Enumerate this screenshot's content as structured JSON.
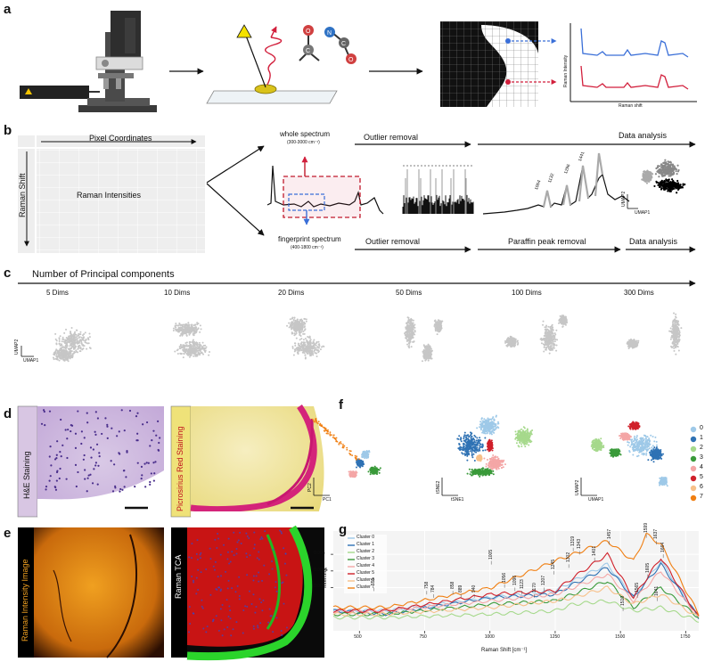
{
  "panels": {
    "a": {
      "letter": "a",
      "ylabel": "Raman Intensity",
      "xlabel": "Raman shift",
      "molecule_atoms": [
        "C",
        "N",
        "C",
        "O",
        "O"
      ]
    },
    "b": {
      "letter": "b",
      "grid_top": "Pixel Coordinates",
      "grid_side": "Raman Shift",
      "grid_center": "Raman Intensities",
      "whole_title": "whole spectrum",
      "whole_range": "(300-3000 cm⁻¹)",
      "finger_title": "fingerprint spectrum",
      "finger_range": "(400-1800 cm⁻¹)",
      "outlier_top": "Outlier removal",
      "analysis_top": "Data analysis",
      "outlier_bottom": "Outlier removal",
      "paraffin": "Paraffin peak removal",
      "analysis_bottom": "Data analysis",
      "peaks": [
        "1064",
        "1132",
        "1296",
        "1441"
      ],
      "umap_x": "UMAP1",
      "umap_y": "UMAP2"
    },
    "c": {
      "letter": "c",
      "title": "Number of Principal components",
      "dims": [
        "5 Dims",
        "10 Dims",
        "20 Dims",
        "50 Dims",
        "100 Dims",
        "300 Dims"
      ],
      "umap_x": "UMAP1",
      "umap_y": "UMAP2"
    },
    "d": {
      "letter": "d",
      "he": "H&E Staining",
      "pr": "Picrosirius Red Staining"
    },
    "e": {
      "letter": "e",
      "rii": "Raman Intensity Image",
      "tca": "Raman TCA"
    },
    "f": {
      "letter": "f",
      "pc_x": "PC1",
      "pc_y": "PC2",
      "tsne_x": "tSNE1",
      "tsne_y": "tSNE2",
      "umap_x": "UMAP1",
      "umap_y": "UMAP2",
      "legend": [
        "0",
        "1",
        "2",
        "3",
        "4",
        "5",
        "6",
        "7"
      ]
    },
    "g": {
      "letter": "g"
    }
  },
  "colors": {
    "c0": "#9ec9e8",
    "c1": "#2f72b4",
    "c2": "#a6d98c",
    "c3": "#3a9a3a",
    "c4": "#f4a6a6",
    "c5": "#d0202a",
    "c6": "#f7c089",
    "c7": "#f07f12"
  },
  "chart_data": {
    "type": "line",
    "xlabel": "Raman Shift [cm⁻¹]",
    "ylabel": "Intensity",
    "xlim": [
      400,
      1800
    ],
    "ylim": [
      0.0037,
      0.0067
    ],
    "xticks": [
      "500",
      "750",
      "1000",
      "1250",
      "1500",
      "1750"
    ],
    "yticks": [
      "0.005",
      "0.0055",
      "0.006"
    ],
    "series": [
      {
        "name": "Cluster 0",
        "color": "#9ec9e8",
        "points": [
          [
            400,
            0.0043
          ],
          [
            600,
            0.0043
          ],
          [
            1005,
            0.0047
          ],
          [
            1250,
            0.0049
          ],
          [
            1319,
            0.0052
          ],
          [
            1450,
            0.0057
          ],
          [
            1550,
            0.0047
          ],
          [
            1655,
            0.0058
          ],
          [
            1800,
            0.0041
          ]
        ]
      },
      {
        "name": "Cluster 1",
        "color": "#2f72b4",
        "points": [
          [
            400,
            0.0043
          ],
          [
            600,
            0.0042
          ],
          [
            1005,
            0.0047
          ],
          [
            1250,
            0.0048
          ],
          [
            1319,
            0.0051
          ],
          [
            1450,
            0.0056
          ],
          [
            1550,
            0.0047
          ],
          [
            1655,
            0.0057
          ],
          [
            1800,
            0.0041
          ]
        ]
      },
      {
        "name": "Cluster 2",
        "color": "#a6d98c",
        "points": [
          [
            400,
            0.0041
          ],
          [
            600,
            0.0041
          ],
          [
            1005,
            0.0042
          ],
          [
            1250,
            0.0043
          ],
          [
            1319,
            0.0045
          ],
          [
            1450,
            0.0046
          ],
          [
            1550,
            0.0043
          ],
          [
            1655,
            0.0044
          ],
          [
            1800,
            0.004
          ]
        ]
      },
      {
        "name": "Cluster 3",
        "color": "#3a9a3a",
        "points": [
          [
            400,
            0.0042
          ],
          [
            600,
            0.0042
          ],
          [
            1005,
            0.0045
          ],
          [
            1250,
            0.0046
          ],
          [
            1319,
            0.0048
          ],
          [
            1450,
            0.0052
          ],
          [
            1550,
            0.0044
          ],
          [
            1655,
            0.005
          ],
          [
            1800,
            0.0041
          ]
        ]
      },
      {
        "name": "Cluster 4",
        "color": "#f4a6a6",
        "points": [
          [
            400,
            0.0043
          ],
          [
            600,
            0.0043
          ],
          [
            1005,
            0.0046
          ],
          [
            1250,
            0.0048
          ],
          [
            1319,
            0.005
          ],
          [
            1450,
            0.0054
          ],
          [
            1550,
            0.0046
          ],
          [
            1655,
            0.0055
          ],
          [
            1800,
            0.0041
          ]
        ]
      },
      {
        "name": "Cluster 5",
        "color": "#d0202a",
        "points": [
          [
            400,
            0.0043
          ],
          [
            600,
            0.0043
          ],
          [
            1005,
            0.0048
          ],
          [
            1250,
            0.0049
          ],
          [
            1319,
            0.0053
          ],
          [
            1450,
            0.006
          ],
          [
            1550,
            0.0047
          ],
          [
            1655,
            0.0059
          ],
          [
            1800,
            0.0041
          ]
        ]
      },
      {
        "name": "Cluster 6",
        "color": "#f7c089",
        "points": [
          [
            400,
            0.0042
          ],
          [
            600,
            0.0042
          ],
          [
            1005,
            0.0044
          ],
          [
            1250,
            0.0046
          ],
          [
            1319,
            0.0047
          ],
          [
            1450,
            0.005
          ],
          [
            1550,
            0.0045
          ],
          [
            1655,
            0.0048
          ],
          [
            1800,
            0.0041
          ]
        ]
      },
      {
        "name": "Cluster 7",
        "color": "#f07f12",
        "points": [
          [
            400,
            0.0044
          ],
          [
            600,
            0.0044
          ],
          [
            1005,
            0.005
          ],
          [
            1250,
            0.0058
          ],
          [
            1319,
            0.006
          ],
          [
            1450,
            0.0064
          ],
          [
            1550,
            0.0058
          ],
          [
            1599,
            0.0066
          ],
          [
            1655,
            0.0063
          ],
          [
            1800,
            0.0042
          ]
        ]
      }
    ],
    "peak_labels": [
      "555",
      "758",
      "784",
      "858",
      "889",
      "940",
      "1005",
      "1056",
      "1096",
      "1123",
      "1170",
      "1207",
      "1245",
      "1302",
      "1319",
      "1343",
      "1401",
      "1457",
      "1510",
      "1565",
      "1599",
      "1605",
      "1637",
      "1641",
      "1664"
    ]
  }
}
